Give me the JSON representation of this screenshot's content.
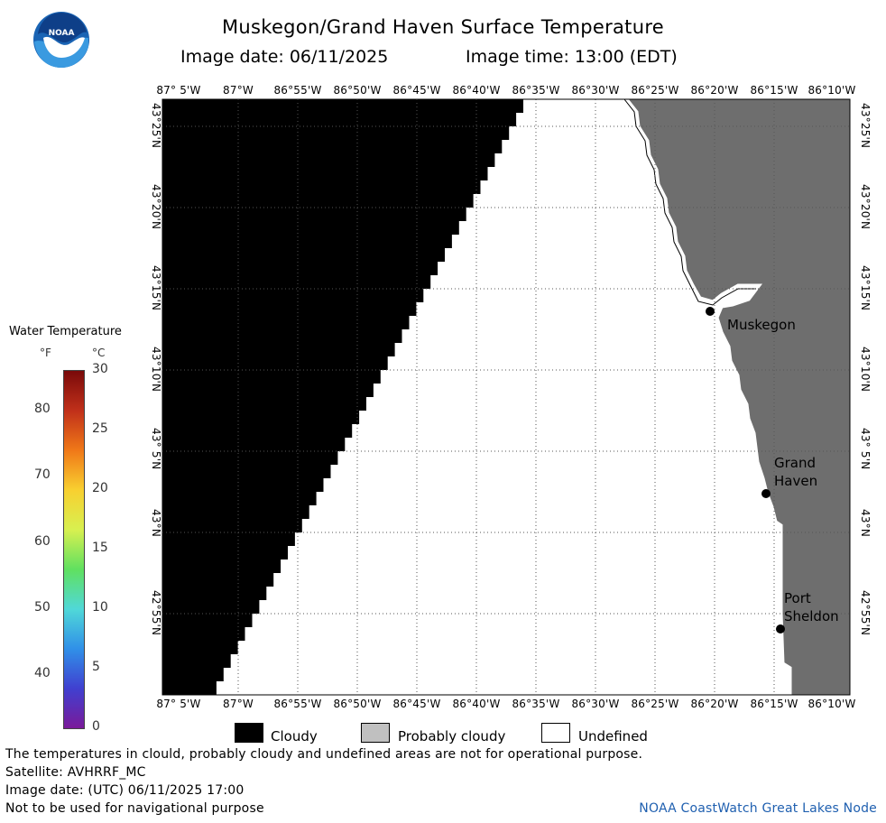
{
  "header": {
    "title": "Muskegon/Grand Haven Surface Temperature",
    "image_date": "Image date: 06/11/2025",
    "image_time": "Image time: 13:00 (EDT)",
    "logo_text": "NOAA"
  },
  "axes": {
    "lon_labels": [
      "87° 5'W",
      "87°W",
      "86°55'W",
      "86°50'W",
      "86°45'W",
      "86°40'W",
      "86°35'W",
      "86°30'W",
      "86°25'W",
      "86°20'W",
      "86°15'W",
      "86°10'W"
    ],
    "lat_labels": [
      "43°25'N",
      "43°20'N",
      "43°15'N",
      "43°10'N",
      "43° 5'N",
      "43°N",
      "42°55'N"
    ]
  },
  "places": [
    {
      "name_lines": [
        "Muskegon"
      ]
    },
    {
      "name_lines": [
        "Grand",
        "Haven"
      ]
    },
    {
      "name_lines": [
        "Port",
        "Sheldon"
      ]
    }
  ],
  "colorbar": {
    "title": "Water Temperature",
    "unit_f": "°F",
    "unit_c": "°C",
    "f_labels": [
      "80",
      "70",
      "60",
      "50",
      "40"
    ],
    "c_labels": [
      "30",
      "25",
      "20",
      "15",
      "10",
      "5",
      "0"
    ],
    "colors": [
      "#7a0a0a",
      "#c0301a",
      "#f07818",
      "#f8d030",
      "#d8f050",
      "#60e060",
      "#50d8d8",
      "#3090e8",
      "#4040d0",
      "#7a1a9a"
    ]
  },
  "legend": {
    "items": [
      {
        "label": "Cloudy",
        "color": "#000000"
      },
      {
        "label": "Probably cloudy",
        "color": "#c0c0c0"
      },
      {
        "label": "Undefined",
        "color": "#ffffff"
      }
    ]
  },
  "footer": {
    "note": "The temperatures in clould, probably cloudy and undefined areas are not for operational purpose.",
    "satellite": "Satellite: AVHRRF_MC",
    "utc_date": "Image date: (UTC) 06/11/2025  17:00",
    "nav_warning": "Not to be used for navigational purpose",
    "credit": "NOAA CoastWatch Great Lakes Node"
  },
  "map_colors": {
    "cloudy": "#000000",
    "land": "#6e6e6e",
    "coast": "#ffffff",
    "grid": "#555555"
  }
}
